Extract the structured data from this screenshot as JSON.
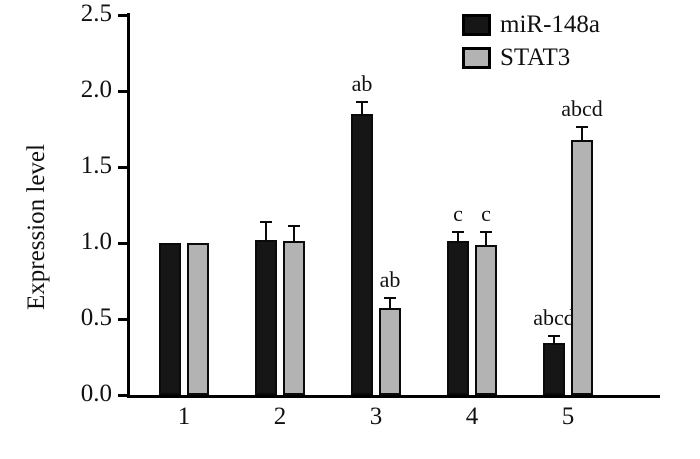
{
  "figure": {
    "background": "#ffffff",
    "axis_color": "#000000",
    "text_color": "#111111"
  },
  "chart_data": {
    "type": "bar",
    "title": "",
    "xlabel": "",
    "ylabel": "Expression level",
    "ylim": [
      0,
      2.5
    ],
    "yticks": [
      "0.0",
      "0.5",
      "1.0",
      "1.5",
      "2.0",
      "2.5"
    ],
    "categories": [
      "1",
      "2",
      "3",
      "4",
      "5"
    ],
    "series": [
      {
        "name": "miR-148a",
        "color": "#161616",
        "values": [
          1.0,
          1.02,
          1.85,
          1.01,
          0.34
        ],
        "errors": [
          0,
          0.12,
          0.08,
          0.06,
          0.05
        ],
        "labels": [
          "",
          "",
          "ab",
          "c",
          "abcd"
        ]
      },
      {
        "name": "STAT3",
        "color": "#b3b3b3",
        "values": [
          1.0,
          1.01,
          0.57,
          0.99,
          1.68
        ],
        "errors": [
          0,
          0.1,
          0.07,
          0.08,
          0.08
        ],
        "labels": [
          "",
          "",
          "ab",
          "c",
          "abcd"
        ]
      }
    ],
    "legend": {
      "position": "top-right",
      "entries": [
        "miR-148a",
        "STAT3"
      ]
    },
    "grid": false,
    "error_bars": true
  }
}
